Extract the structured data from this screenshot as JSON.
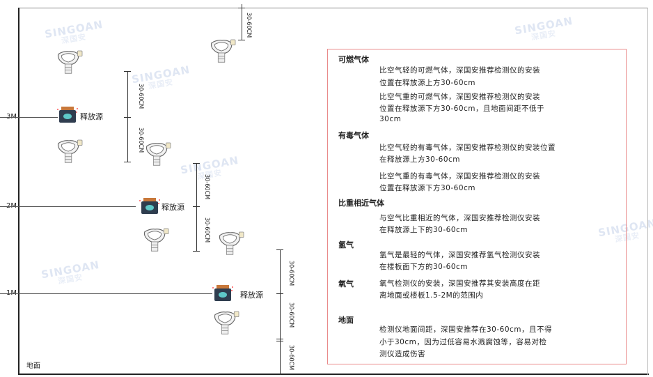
{
  "watermark": {
    "brand": "SINGOAN",
    "cn": "深国安"
  },
  "levels": [
    "3M",
    "2M",
    "1M"
  ],
  "floor_label": "地面",
  "source_label": "释放源",
  "dimension_label": "30-60CM",
  "icons": {
    "detector": "gas-detector-icon",
    "source": "release-source-icon"
  },
  "colors": {
    "box_border": "#e98a8a",
    "source_top": "#c8783a",
    "source_body": "#2f3d4f",
    "source_face": "#5ec8c8"
  },
  "notes": [
    {
      "title": "可燃气体",
      "paragraphs": [
        [
          "比空气轻的可燃气体，深国安推荐检测仪的安装",
          "位置在释放源上方30-60cm"
        ],
        [
          "比空气重的可燃气体，深国安推荐检测仪的安装",
          "位置在释放源下方30-60cm，且地面间距不低于",
          "30cm"
        ]
      ]
    },
    {
      "title": "有毒气体",
      "paragraphs": [
        [
          "比空气轻的有毒气体，深国安推荐检测仪的安装位置",
          "在释放源上方30-60cm"
        ],
        [
          "比空气重的有毒气体，深国安推荐检测仪的安装",
          "位置在释放源下方30-60cm"
        ]
      ]
    },
    {
      "title": "比重相近气体",
      "paragraphs": [
        [
          "与空气比重相近的气体，深国安推荐检测仪安装",
          "在释放源上下的30-60cm"
        ]
      ]
    },
    {
      "title": "氢气",
      "paragraphs": [
        [
          "氢气是最轻的气体，深国安推荐氢气检测仪安装",
          "在楼板面下方的30-60cm"
        ]
      ]
    },
    {
      "title": "氧气",
      "paragraphs": [
        [
          "氧气检测仪的安装，深国安推荐其安装高度在距",
          "离地面或楼板1.5-2M的范围内"
        ]
      ]
    },
    {
      "title": "地面",
      "paragraphs": [
        [
          "检测仪地面间距，深国安推荐在30-60cm，且不得",
          "小于30cm，因为过低容易水溅腐蚀等，容易对检",
          "测仪造成伤害"
        ]
      ]
    }
  ]
}
